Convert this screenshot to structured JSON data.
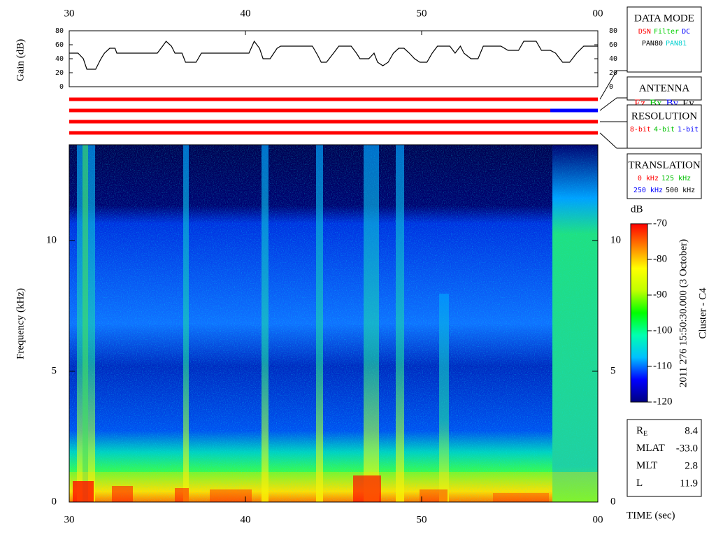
{
  "chart_data": [
    {
      "type": "line",
      "ylabel": "Gain (dB)",
      "color": "#000000",
      "x": [
        30,
        30.5,
        30.8,
        31,
        31.5,
        31.8,
        32,
        32.3,
        32.6,
        32.7,
        35,
        35.3,
        35.5,
        35.8,
        36,
        36.4,
        36.6,
        37.2,
        37.5,
        40.2,
        40.5,
        40.8,
        41,
        41.4,
        41.8,
        42,
        43.8,
        44.1,
        44.3,
        44.6,
        45,
        45.3,
        46,
        46.3,
        46.5,
        47,
        47.3,
        47.5,
        47.8,
        48.1,
        48.4,
        48.7,
        49,
        49.3,
        49.6,
        49.9,
        50.3,
        50.6,
        50.9,
        51.6,
        51.9,
        52.2,
        52.4,
        52.8,
        53.2,
        53.5,
        54.5,
        54.9,
        55.5,
        55.8,
        56.5,
        56.8,
        57.3,
        57.6,
        58,
        58.4,
        58.8,
        59.2,
        60
      ],
      "values": [
        48,
        48,
        40,
        25,
        25,
        40,
        48,
        55,
        55,
        48,
        48,
        58,
        65,
        58,
        48,
        48,
        35,
        35,
        48,
        48,
        65,
        55,
        40,
        40,
        55,
        58,
        58,
        45,
        35,
        35,
        48,
        58,
        58,
        48,
        40,
        40,
        48,
        35,
        30,
        35,
        48,
        55,
        55,
        48,
        40,
        35,
        35,
        48,
        58,
        58,
        48,
        58,
        48,
        40,
        40,
        58,
        58,
        52,
        52,
        65,
        65,
        52,
        52,
        48,
        35,
        35,
        48,
        58,
        58
      ],
      "xlim": [
        30,
        60
      ],
      "xticks": [
        30,
        40,
        50,
        {
          "value": 60,
          "label": "00"
        }
      ],
      "ylim": [
        0,
        80
      ],
      "yticks": [
        0,
        20,
        40,
        60,
        80
      ]
    },
    {
      "type": "status",
      "xlim": [
        30,
        60
      ],
      "rows": [
        [
          {
            "start": 30,
            "end": 60,
            "color": "#ff0000"
          }
        ],
        [
          {
            "start": 30,
            "end": 57.3,
            "color": "#ff0000"
          },
          {
            "start": 57.3,
            "end": 60,
            "color": "#0000ff"
          }
        ],
        [
          {
            "start": 30,
            "end": 60,
            "color": "#ff0000"
          }
        ],
        [
          {
            "start": 30,
            "end": 60,
            "color": "#ff0000"
          }
        ]
      ]
    },
    {
      "type": "heatmap",
      "ylabel": "Frequency (kHz)",
      "xlabel": "TIME (sec)",
      "xlim": [
        30,
        60
      ],
      "xticks": [
        30,
        40,
        50,
        {
          "value": 60,
          "label": "00"
        }
      ],
      "ylim": [
        0,
        13.66
      ],
      "yticks": [
        0,
        5,
        10
      ]
    },
    {
      "type": "colorbar",
      "title": "dB",
      "ylim": [
        -120,
        -70
      ],
      "yticks": [
        -70,
        -80,
        -90,
        -100,
        -110,
        -120
      ],
      "colors": [
        "#000080",
        "#0000ff",
        "#00c0ff",
        "#00ffb0",
        "#00ff00",
        "#c0ff00",
        "#ffff00",
        "#ff8000",
        "#ff0000"
      ]
    }
  ],
  "side_text": [
    "2011 276 15:50:30.000 (3 October)",
    "Cluster - C4"
  ],
  "legend_boxes": [
    {
      "title": "DATA MODE",
      "lines": [
        [
          {
            "text": "DSN",
            "color": "#ff0000"
          },
          {
            "text": "Filter",
            "color": "#00d000"
          },
          {
            "text": "DC",
            "color": "#0000ff"
          }
        ],
        [
          {
            "text": "PAN80",
            "color": "#000000"
          },
          {
            "text": "PAN81",
            "color": "#00d0d0"
          }
        ]
      ]
    },
    {
      "title": "ANTENNA",
      "lines": [
        [
          {
            "text": "Ez",
            "color": "#ff0000"
          },
          {
            "text": "Bx",
            "color": "#00c000"
          },
          {
            "text": "By",
            "color": "#0000ff"
          },
          {
            "text": "Ey",
            "color": "#000000"
          }
        ]
      ]
    },
    {
      "title": "RESOLUTION",
      "lines": [
        [
          {
            "text": "8-bit",
            "color": "#ff0000"
          },
          {
            "text": "4-bit",
            "color": "#00c000"
          },
          {
            "text": "1-bit",
            "color": "#0000ff"
          }
        ]
      ]
    },
    {
      "title": "TRANSLATION",
      "lines": [
        [
          {
            "text": "0 kHz",
            "color": "#ff0000"
          },
          {
            "text": "125 kHz",
            "color": "#00c000"
          }
        ],
        [
          {
            "text": "250 kHz",
            "color": "#0000ff"
          },
          {
            "text": "500 kHz",
            "color": "#000000"
          }
        ]
      ]
    }
  ],
  "info": [
    {
      "label": "R",
      "sub": "E",
      "value": "8.4"
    },
    {
      "label": "MLAT",
      "value": "-33.0"
    },
    {
      "label": "MLT",
      "value": "2.8"
    },
    {
      "label": "L",
      "value": "11.9"
    }
  ]
}
